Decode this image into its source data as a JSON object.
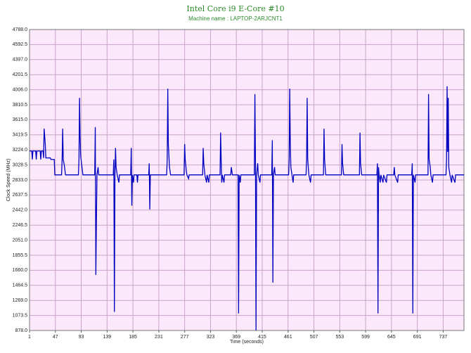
{
  "chart_data": {
    "type": "line",
    "title": "Intel Core i9 E-Core #10",
    "subtitle": "Machine name : LAPTOP-2ARJCNT1",
    "x_label": "Time (seconds)",
    "y_label": "Clock Speed (MHz)",
    "xlim": [
      1,
      774
    ],
    "ylim": [
      878,
      4788
    ],
    "xticks": [
      1,
      47,
      93,
      139,
      185,
      231,
      277,
      323,
      369,
      415,
      461,
      507,
      553,
      599,
      645,
      691,
      737
    ],
    "yticks": [
      {
        "value": 878,
        "label": "878.0"
      },
      1073.5,
      {
        "value": 1269,
        "label": "1269.0"
      },
      1464.5,
      {
        "value": 1660,
        "label": "1660.0"
      },
      1855.5,
      {
        "value": 2051,
        "label": "2051.0"
      },
      2246.5,
      {
        "value": 2442,
        "label": "2442.0"
      },
      2637.5,
      {
        "value": 2833,
        "label": "2833.0"
      },
      3028.5,
      {
        "value": 3224,
        "label": "3224.0"
      },
      3419.5,
      {
        "value": 3615,
        "label": "3615.0"
      },
      3810.5,
      {
        "value": 4006,
        "label": "4006.0"
      },
      4201.5,
      {
        "value": 4397,
        "label": "4397.0"
      },
      4592.5,
      {
        "value": 4788,
        "label": "4788.0"
      }
    ],
    "grid": true,
    "color": "#0000c0",
    "background": "#fbe9fb",
    "x": [
      1,
      5,
      6,
      7,
      12,
      13,
      14,
      20,
      21,
      22,
      25,
      26,
      27,
      29,
      30,
      38,
      39,
      45,
      46,
      58,
      59,
      60,
      61,
      63,
      65,
      88,
      89,
      90,
      91,
      92,
      94,
      96,
      117,
      118,
      119,
      120,
      121,
      123,
      124,
      150,
      151,
      152,
      153,
      154,
      155,
      157,
      160,
      161,
      181,
      182,
      183,
      184,
      186,
      187,
      192,
      193,
      194,
      213,
      214,
      215,
      216,
      245,
      246,
      247,
      248,
      250,
      252,
      276,
      277,
      278,
      280,
      281,
      284,
      285,
      309,
      310,
      311,
      313,
      316,
      317,
      320,
      321,
      340,
      341,
      342,
      343,
      344,
      347,
      348,
      359,
      360,
      362,
      372,
      373,
      374,
      376,
      377,
      401,
      402,
      403,
      404,
      405,
      407,
      408,
      411,
      412,
      432,
      433,
      434,
      435,
      437,
      438,
      462,
      463,
      464,
      465,
      466,
      468,
      470,
      471,
      493,
      494,
      495,
      496,
      498,
      501,
      502,
      524,
      525,
      526,
      528,
      556,
      557,
      558,
      560,
      588,
      589,
      590,
      592,
      619,
      620,
      621,
      622,
      623,
      625,
      626,
      630,
      631,
      636,
      637,
      649,
      650,
      651,
      656,
      657,
      681,
      682,
      683,
      684,
      687,
      688,
      710,
      711,
      712,
      714,
      715,
      718,
      719,
      742,
      743,
      744,
      745,
      746,
      747,
      749,
      752,
      753,
      758,
      759,
      774
    ],
    "values": [
      3210,
      3210,
      3100,
      3210,
      3210,
      3100,
      3210,
      3210,
      3100,
      3210,
      3210,
      3120,
      3500,
      3300,
      3120,
      3120,
      3100,
      3100,
      2900,
      2900,
      3100,
      3500,
      3100,
      3020,
      2900,
      2900,
      3100,
      3900,
      3400,
      3150,
      3020,
      2900,
      2900,
      3520,
      1600,
      2300,
      2900,
      3000,
      2900,
      2900,
      3100,
      1120,
      2900,
      3250,
      3000,
      2900,
      2800,
      2900,
      2900,
      3250,
      2500,
      2900,
      2800,
      2900,
      2900,
      2800,
      2900,
      2900,
      3050,
      2450,
      2900,
      2900,
      3100,
      4020,
      3300,
      3000,
      2900,
      2900,
      3300,
      3100,
      2950,
      2900,
      2850,
      2900,
      2900,
      3250,
      3050,
      2900,
      2800,
      2900,
      2800,
      2900,
      2900,
      3450,
      3100,
      2800,
      2900,
      2800,
      2900,
      2900,
      3000,
      2900,
      2900,
      1100,
      2900,
      2800,
      2900,
      2900,
      3950,
      3100,
      880,
      2900,
      3050,
      2900,
      2800,
      2900,
      2900,
      3350,
      1500,
      2900,
      3000,
      2900,
      2900,
      3100,
      4020,
      3300,
      3000,
      2900,
      2800,
      2900,
      2900,
      3100,
      3900,
      3100,
      2900,
      2800,
      2900,
      2900,
      3500,
      3100,
      2900,
      2900,
      3300,
      3050,
      2900,
      2900,
      3450,
      3050,
      2900,
      2900,
      3050,
      1100,
      3000,
      2900,
      2800,
      2900,
      2800,
      2900,
      2800,
      2900,
      2900,
      3000,
      2900,
      2800,
      2900,
      2900,
      3050,
      1100,
      2900,
      2800,
      2900,
      2900,
      3950,
      3100,
      3000,
      2900,
      2800,
      2900,
      2900,
      3100,
      4050,
      3200,
      3900,
      3000,
      2900,
      2800,
      2900,
      2800,
      2900,
      2900
    ]
  }
}
